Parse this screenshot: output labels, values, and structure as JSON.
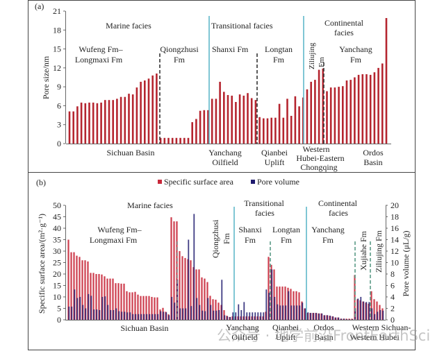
{
  "chart_data": [
    {
      "panel_label": "(a)",
      "type": "bar",
      "title": "",
      "xlabel": "",
      "ylabel": "Pore size/nm",
      "ylim": [
        0,
        21
      ],
      "yticks": [
        0,
        3,
        6,
        9,
        12,
        15,
        18,
        21
      ],
      "grid": false,
      "bar_color": "#b5252f",
      "groups": [
        {
          "formation": "Wufeng Fm–Longmaxi Fm",
          "values": [
            5.1,
            5.1,
            5.9,
            6.5,
            6.4,
            6.5,
            6.5,
            6.4,
            6.5,
            6.9,
            6.9,
            6.9,
            7.1,
            7.4,
            7.4,
            7.9,
            7.8,
            8.9,
            9.8,
            10.0,
            10.3,
            10.8,
            11.1
          ]
        },
        {
          "formation": "Qiongzhusi Fm",
          "values": [
            0.9,
            0.9,
            0.9,
            0.9,
            0.9,
            0.9,
            0.9,
            0.9,
            3.4,
            3.9,
            5.2,
            5.3,
            5.3
          ]
        },
        {
          "formation": "Shanxi Fm",
          "values": [
            7.1,
            7.1,
            9.8,
            8.2,
            7.7,
            7.6,
            6.6,
            7.8,
            7.6,
            8.0,
            7.2,
            6.9
          ]
        },
        {
          "formation": "Longtan Fm",
          "values": [
            4.2,
            4.0,
            4.0,
            4.1,
            4.1,
            6.3,
            4.1,
            7.1,
            4.4,
            7.5,
            5.9,
            7.3
          ]
        },
        {
          "formation": "Ziliujing Fm",
          "values": [
            8.6,
            9.8,
            10.1,
            11.7,
            11.9
          ]
        },
        {
          "formation": "Yanchang Fm",
          "values": [
            8.3,
            8.9,
            8.9,
            9.0,
            9.1,
            10.0,
            10.1,
            10.5,
            10.9,
            11.0,
            11.0,
            10.9,
            11.3,
            12.0,
            12.7,
            19.9
          ]
        }
      ],
      "facies_labels": [
        "Marine facies",
        "Transitional facies",
        "Continental facies"
      ],
      "formation_labels": [
        "Wufeng Fm–",
        "Longmaxi Fm",
        "Qiongzhusi",
        "Fm",
        "Shanxi Fm",
        "Longtan",
        "Fm",
        "Ziliujing",
        "Fm",
        "Yanchang",
        "Fm"
      ],
      "region_labels": [
        "Sichuan Basin",
        "Yanchang",
        "Oilfield",
        "Qianbei",
        "Uplift",
        "Western",
        "Hubei-Eastern",
        "Chongqing",
        "Ordos",
        "Basin"
      ]
    },
    {
      "panel_label": "(b)",
      "type": "bar",
      "title": "",
      "xlabel": "",
      "ylabel": "Specific surface area/(m²·g⁻¹)",
      "ylabel_right": "Pore volume (μL/g)",
      "ylim": [
        0,
        50
      ],
      "ylim_right": [
        0,
        20
      ],
      "yticks": [
        0,
        5,
        10,
        15,
        20,
        25,
        30,
        35,
        40,
        45,
        50
      ],
      "yticks_right": [
        0,
        2,
        4,
        6,
        8,
        10,
        12,
        14,
        16,
        18,
        20
      ],
      "grid": false,
      "legend": {
        "position": "top-center",
        "entries": [
          {
            "name": "Specific surface area",
            "color": "#c8283a"
          },
          {
            "name": "Pore volume",
            "color": "#1f1a6e"
          }
        ]
      },
      "groups": [
        {
          "formation": "Wufeng Fm–Longmaxi Fm",
          "ssa": [
            35,
            29.5,
            29.5,
            28,
            27.5,
            26,
            26,
            25.5,
            20.5,
            20.5,
            20,
            20,
            19.8,
            19,
            18,
            18,
            18,
            16,
            16,
            15.8,
            15.8,
            12.5,
            12,
            12,
            12.2,
            11,
            10.4,
            10.4,
            10.4,
            10.4,
            10,
            9.8,
            9.8,
            4.5,
            5.2,
            3.5,
            2.4
          ],
          "pv": [
            2.3,
            2.3,
            5.3,
            3.8,
            4.0,
            2.6,
            2.0,
            4.5,
            4.2,
            1.8,
            1.8,
            1.7,
            4.0,
            4.1,
            2.6,
            1.7,
            1.7,
            2.0,
            1.5,
            1.4,
            1.4,
            1.3,
            1.3,
            1.0,
            1.0,
            1.0,
            1.0,
            1.0,
            1.0,
            1.0,
            1.0,
            1.0,
            1.0,
            1.5,
            1.4,
            1.3,
            0.8
          ]
        },
        {
          "formation": "Qiongzhusi Fm",
          "ssa": [
            44.8,
            43,
            43,
            30,
            27.8,
            27,
            26.5,
            26,
            23,
            22,
            22,
            18.5,
            18,
            16.5,
            10.5,
            9,
            8.8,
            7.5,
            6.5,
            4.2,
            1.8,
            1.2
          ],
          "pv": [
            4.0,
            3.0,
            7.0,
            2.0,
            2.0,
            2.0,
            14.0,
            2.4,
            18.5,
            3.8,
            2.6,
            1.6,
            1.5,
            3.8,
            2.6,
            1.6,
            1.6,
            1.7,
            7.0,
            0.8,
            0.6,
            0.5
          ]
        },
        {
          "formation": "Shanxi Fm",
          "ssa": [
            1.5,
            1.5,
            1.5,
            1.5,
            1.5,
            1.5,
            1.5,
            1.5,
            1.5,
            1.5,
            1.5,
            1.5
          ],
          "pv": [
            1.3,
            1.3,
            2.7,
            1.7,
            3.1,
            1.3,
            1.3,
            1.3,
            1.3,
            1.3,
            1.3,
            1.3
          ]
        },
        {
          "formation": "Longtan Fm",
          "ssa": [
            3.5,
            27.5,
            24,
            22,
            14.5,
            14.5,
            14.5,
            14.5,
            14,
            13.5,
            12.5,
            12.5,
            12,
            8
          ],
          "pv": [
            5.3,
            4.7,
            8.8,
            4.0,
            2.7,
            2.5,
            2.5,
            2.5,
            5.0,
            2.5,
            2.5,
            2.5,
            2.5,
            3.0
          ]
        },
        {
          "formation": "Yanchang Fm",
          "ssa": [
            5.0,
            3.0,
            3.0,
            3.0,
            3.0,
            2.8,
            2.8,
            2.0,
            2.0,
            1.8,
            1.5,
            1.0,
            1.0,
            0.5,
            0.5,
            0.5,
            0.5,
            0.5
          ],
          "pv": [
            2.0,
            1.3,
            1.2,
            1.2,
            1.2,
            1.1,
            1.1,
            0.8,
            0.8,
            0.7,
            0.6,
            0.4,
            0.4,
            0.2,
            0.2,
            0.1,
            0.1,
            0.1
          ]
        },
        {
          "formation": "Xujiahe Fm",
          "ssa": [
            19.5,
            9,
            8.5,
            8,
            7.5,
            7
          ],
          "pv": [
            2.0,
            3.7,
            4.0,
            3.2,
            3.1,
            3.1
          ]
        },
        {
          "formation": "Ziliujing Fm",
          "ssa": [
            12.5,
            9,
            8,
            6.5,
            5
          ],
          "pv": [
            2.0,
            1.0,
            1.4,
            1.7,
            1.6
          ]
        }
      ],
      "facies_labels": [
        "Marine facies",
        "Transitional facies",
        "Continental facies"
      ],
      "formation_labels": [
        "Wufeng Fm–",
        "Longmaxi Fm",
        "Qiongzhusi",
        "Fm",
        "Shanxi",
        "Fm",
        "Longtan",
        "Fm",
        "Yanchang",
        "Fm",
        "Xujiahe Fm",
        "Ziliujing Fm"
      ],
      "region_labels": [
        "Sichuan Basin",
        "Yanchang",
        "Oilfield",
        "Qianbei",
        "Uplift",
        "Ordos",
        "Basin",
        "Western Sichuan-",
        "Western Hubei"
      ]
    }
  ],
  "watermark": "公众号 · 地学前沿FrontEarthSci"
}
